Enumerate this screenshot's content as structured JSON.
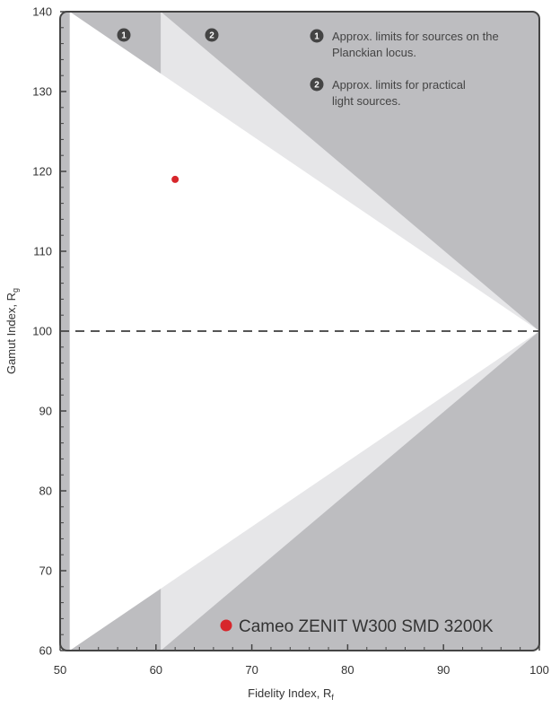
{
  "chart_data": {
    "type": "scatter",
    "xlabel": "Fidelity Index, R",
    "xlabel_sub": "f",
    "ylabel": "Gamut Index,  R",
    "ylabel_sub": "g",
    "xlim": [
      50,
      100
    ],
    "ylim": [
      60,
      140
    ],
    "x_ticks": [
      50,
      60,
      70,
      80,
      90,
      100
    ],
    "y_ticks": [
      60,
      70,
      80,
      90,
      100,
      110,
      120,
      130,
      140
    ],
    "reference_line": {
      "y": 100,
      "style": "dashed"
    },
    "regions": [
      {
        "id": "1",
        "boundary": [
          [
            51,
            60
          ],
          [
            100,
            100
          ],
          [
            51,
            140
          ]
        ],
        "fill": "#ffffff"
      },
      {
        "id": "2",
        "boundary": [
          [
            60.5,
            60
          ],
          [
            100,
            100
          ],
          [
            60.5,
            140
          ]
        ],
        "fill": "#e6e6e8"
      }
    ],
    "outside_fill": "#bdbdc0",
    "series": [
      {
        "name": "Cameo ZENIT W300 SMD 3200K",
        "points": [
          {
            "x": 62,
            "y": 119
          }
        ],
        "color": "#d7262b"
      }
    ],
    "annotations": [
      {
        "id": "1",
        "lines": [
          "Approx. limits for sources on the",
          "Planckian locus."
        ]
      },
      {
        "id": "2",
        "lines": [
          "Approx. limits for practical",
          "light sources."
        ]
      }
    ],
    "region_markers": [
      "1",
      "2"
    ],
    "legend_position": "bottom"
  }
}
